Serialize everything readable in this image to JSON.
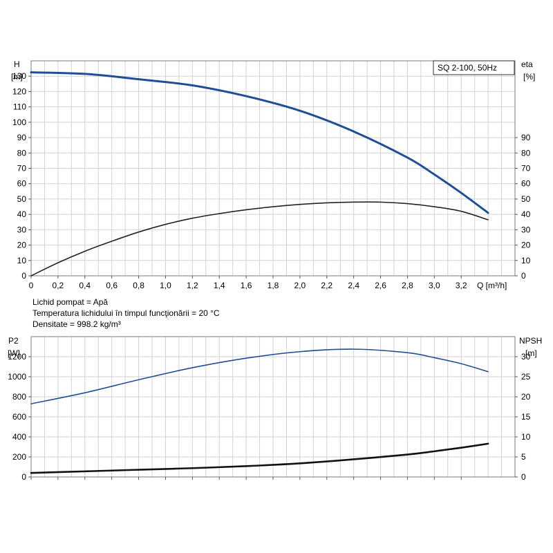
{
  "chart_data": [
    {
      "type": "line",
      "legend": "SQ 2-100, 50Hz",
      "x_axis": {
        "label": "Q [m³/h]",
        "range": [
          0,
          3.6
        ],
        "ticks": [
          0,
          0.2,
          0.4,
          0.6,
          0.8,
          1.0,
          1.2,
          1.4,
          1.6,
          1.8,
          2.0,
          2.2,
          2.4,
          2.6,
          2.8,
          3.0,
          3.2
        ],
        "tick_labels": [
          "0",
          "0,2",
          "0,4",
          "0,6",
          "0,8",
          "1,0",
          "1,2",
          "1,4",
          "1,6",
          "1,8",
          "2,0",
          "2,2",
          "2,4",
          "2,6",
          "2,8",
          "3,0",
          "3,2"
        ]
      },
      "y_left": {
        "label": "H",
        "unit": "[m]",
        "range": [
          0,
          140
        ],
        "ticks": [
          0,
          10,
          20,
          30,
          40,
          50,
          60,
          70,
          80,
          90,
          100,
          110,
          120,
          130
        ]
      },
      "y_right": {
        "label": "eta",
        "unit": "[%]",
        "range": [
          0,
          140
        ],
        "ticks": [
          0,
          10,
          20,
          30,
          40,
          50,
          60,
          70,
          80,
          90
        ]
      },
      "grid": true,
      "series": [
        {
          "axis": "left",
          "color": "#1f4e96",
          "x": [
            0,
            0.4,
            0.8,
            1.2,
            1.6,
            2.0,
            2.4,
            2.8,
            3.0,
            3.2,
            3.4
          ],
          "y": [
            132.5,
            131.5,
            128,
            124,
            117,
            107.5,
            94,
            77,
            66,
            54,
            41
          ]
        },
        {
          "axis": "right",
          "color": "#222222",
          "x": [
            0,
            0.2,
            0.4,
            0.6,
            0.8,
            1.0,
            1.2,
            1.4,
            1.6,
            1.8,
            2.0,
            2.2,
            2.4,
            2.6,
            2.8,
            3.0,
            3.2,
            3.4
          ],
          "y": [
            0,
            8.5,
            16,
            22.5,
            28.5,
            33.5,
            37.5,
            40.5,
            43,
            45,
            46.5,
            47.5,
            48,
            48,
            47,
            45,
            42,
            36.5
          ]
        }
      ]
    },
    {
      "type": "line",
      "x_axis": {
        "range": [
          0,
          3.6
        ],
        "ticks": [
          0,
          0.2,
          0.4,
          0.6,
          0.8,
          1.0,
          1.2,
          1.4,
          1.6,
          1.8,
          2.0,
          2.2,
          2.4,
          2.6,
          2.8,
          3.0,
          3.2
        ]
      },
      "y_left": {
        "label": "P2",
        "unit": "[W]",
        "range": [
          0,
          1400
        ],
        "ticks": [
          0,
          200,
          400,
          600,
          800,
          1000,
          1200
        ]
      },
      "y_right": {
        "label": "NPSH",
        "unit": "[m]",
        "range": [
          0,
          35
        ],
        "ticks": [
          0,
          5,
          10,
          15,
          20,
          25,
          30
        ]
      },
      "grid": true,
      "series": [
        {
          "axis": "left",
          "color": "#1f4e96",
          "x": [
            0,
            0.4,
            0.8,
            1.2,
            1.6,
            2.0,
            2.4,
            2.8,
            3.0,
            3.2,
            3.4
          ],
          "y": [
            730,
            840,
            970,
            1090,
            1185,
            1250,
            1275,
            1240,
            1190,
            1130,
            1050
          ]
        },
        {
          "axis": "right",
          "color": "#111111",
          "x": [
            0,
            0.4,
            0.8,
            1.2,
            1.6,
            2.0,
            2.4,
            2.8,
            3.0,
            3.2,
            3.4
          ],
          "y": [
            1,
            1.4,
            1.8,
            2.2,
            2.7,
            3.4,
            4.4,
            5.6,
            6.4,
            7.3,
            8.3
          ]
        }
      ]
    }
  ],
  "info": {
    "line1": "Lichid pompat = Apă",
    "line2": "Temperatura lichidului în timpul funcţionării = 20 °C",
    "line3": "Densitate = 998.2 kg/m³"
  }
}
